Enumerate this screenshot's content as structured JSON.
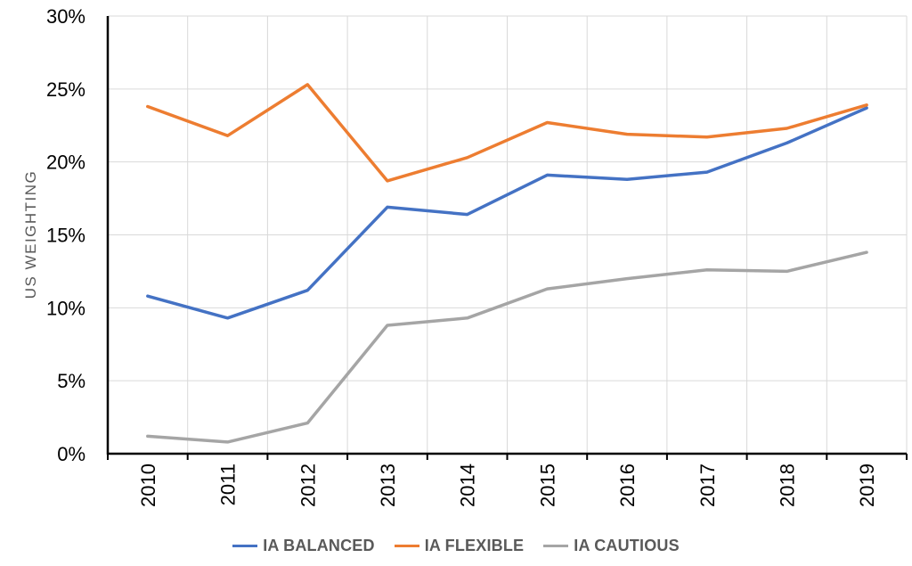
{
  "chart_data": {
    "type": "line",
    "title": "",
    "xlabel": "",
    "ylabel": "US WEIGHTING",
    "x": [
      "2010",
      "2011",
      "2012",
      "2013",
      "2014",
      "2015",
      "2016",
      "2017",
      "2018",
      "2019"
    ],
    "ylim": [
      0,
      30
    ],
    "yticks": [
      "0%",
      "5%",
      "10%",
      "15%",
      "20%",
      "25%",
      "30%"
    ],
    "grid": "vertical-and-horizontal",
    "legend_position": "bottom",
    "series": [
      {
        "name": "IA BALANCED",
        "color": "#4472C4",
        "values": [
          10.8,
          9.3,
          11.2,
          16.9,
          16.4,
          19.1,
          18.8,
          19.3,
          21.3,
          23.7
        ]
      },
      {
        "name": "IA FLEXIBLE",
        "color": "#ED7D31",
        "values": [
          23.8,
          21.8,
          25.3,
          18.7,
          20.3,
          22.7,
          21.9,
          21.7,
          22.3,
          23.9
        ]
      },
      {
        "name": "IA CAUTIOUS",
        "color": "#A5A5A5",
        "values": [
          1.2,
          0.8,
          2.1,
          8.8,
          9.3,
          11.3,
          12.0,
          12.6,
          12.5,
          13.8
        ]
      }
    ]
  }
}
